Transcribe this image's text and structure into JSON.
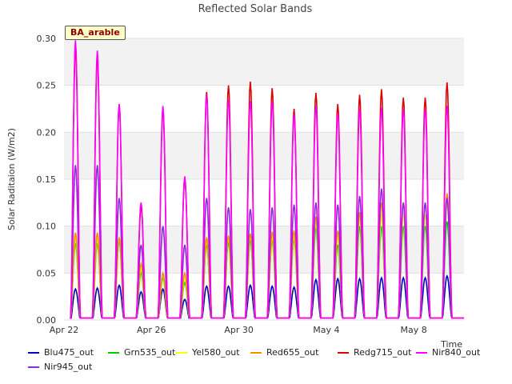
{
  "chart_data": {
    "type": "line",
    "title": "Reflected Solar Bands",
    "ylabel": "Solar Raditaion (W/m2)",
    "xlabel": "Time",
    "ylim": [
      0,
      0.3
    ],
    "xlim_days": [
      "Apr 22",
      "May 10"
    ],
    "yticks": [
      "0.00",
      "0.05",
      "0.10",
      "0.15",
      "0.20",
      "0.25",
      "0.30"
    ],
    "xticks": [
      "Apr 22",
      "Apr 26",
      "Apr 30",
      "May 4",
      "May 8"
    ],
    "grid": true,
    "legend_position": "bottom",
    "annotation": "BA_arable",
    "days": [
      "Apr 22",
      "Apr 23",
      "Apr 24",
      "Apr 25",
      "Apr 26",
      "Apr 27",
      "Apr 28",
      "Apr 29",
      "Apr 30",
      "May 1",
      "May 2",
      "May 3",
      "May 4",
      "May 5",
      "May 6",
      "May 7",
      "May 8",
      "May 9"
    ],
    "series": [
      {
        "name": "Blu475_out",
        "color": "#0000cc",
        "daily_peak": [
          0.033,
          0.034,
          0.037,
          0.03,
          0.033,
          0.022,
          0.036,
          0.036,
          0.037,
          0.036,
          0.035,
          0.043,
          0.044,
          0.044,
          0.045,
          0.045,
          0.045,
          0.047
        ]
      },
      {
        "name": "Grn535_out",
        "color": "#00cc00",
        "daily_peak": [
          0.082,
          0.082,
          0.085,
          0.05,
          0.045,
          0.04,
          0.08,
          0.083,
          0.085,
          0.085,
          0.086,
          0.098,
          0.08,
          0.1,
          0.1,
          0.1,
          0.1,
          0.105
        ]
      },
      {
        "name": "Yel580_out",
        "color": "#ffff00",
        "daily_peak": [
          0.088,
          0.088,
          0.088,
          0.055,
          0.048,
          0.045,
          0.085,
          0.088,
          0.09,
          0.09,
          0.09,
          0.105,
          0.09,
          0.11,
          0.112,
          0.112,
          0.112,
          0.125
        ]
      },
      {
        "name": "Red655_out",
        "color": "#ff8c00",
        "daily_peak": [
          0.093,
          0.093,
          0.088,
          0.06,
          0.05,
          0.05,
          0.088,
          0.09,
          0.092,
          0.094,
          0.095,
          0.11,
          0.095,
          0.115,
          0.125,
          0.125,
          0.125,
          0.135
        ]
      },
      {
        "name": "Redg715_out",
        "color": "#dd0000",
        "daily_peak": [
          0.29,
          0.28,
          0.23,
          0.12,
          0.225,
          0.15,
          0.243,
          0.25,
          0.254,
          0.247,
          0.225,
          0.242,
          0.23,
          0.24,
          0.246,
          0.237,
          0.237,
          0.253
        ]
      },
      {
        "name": "Nir840_out",
        "color": "#ff00ff",
        "daily_peak": [
          0.298,
          0.287,
          0.23,
          0.125,
          0.228,
          0.153,
          0.24,
          0.235,
          0.233,
          0.233,
          0.219,
          0.228,
          0.22,
          0.225,
          0.226,
          0.225,
          0.225,
          0.228
        ]
      },
      {
        "name": "Nir945_out",
        "color": "#8a2be2",
        "daily_peak": [
          0.165,
          0.165,
          0.13,
          0.08,
          0.1,
          0.08,
          0.13,
          0.12,
          0.118,
          0.12,
          0.123,
          0.125,
          0.123,
          0.132,
          0.14,
          0.125,
          0.125,
          0.13
        ]
      }
    ]
  }
}
